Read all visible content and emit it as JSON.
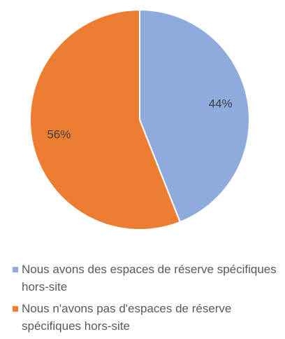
{
  "chart_data": {
    "type": "pie",
    "categories": [
      "Nous avons des espaces de réserve spécifiques hors-site",
      "Nous n'avons pas d'espaces de réserve spécifiques hors-site"
    ],
    "values": [
      44,
      56
    ],
    "value_labels": [
      "44%",
      "56%"
    ],
    "colors": [
      "#8faadc",
      "#ed7d31"
    ],
    "legend": "bottom"
  }
}
